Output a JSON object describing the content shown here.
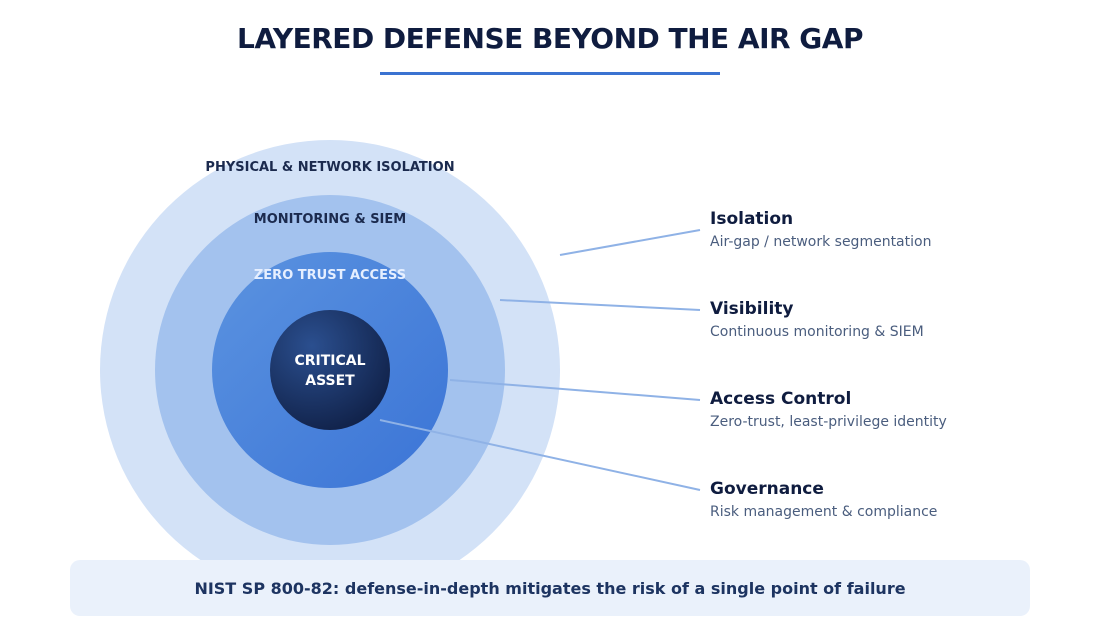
{
  "title": "LAYERED DEFENSE BEYOND THE AIR GAP",
  "rings": {
    "outer_label": "PHYSICAL & NETWORK ISOLATION",
    "second_label": "MONITORING & SIEM",
    "third_label": "ZERO TRUST ACCESS",
    "core_line1": "CRITICAL",
    "core_line2": "ASSET"
  },
  "legend": [
    {
      "title": "Isolation",
      "desc": "Air-gap / network segmentation"
    },
    {
      "title": "Visibility",
      "desc": "Continuous monitoring & SIEM"
    },
    {
      "title": "Access Control",
      "desc": "Zero-trust, least-privilege identity"
    },
    {
      "title": "Governance",
      "desc": "Risk management & compliance"
    }
  ],
  "footer": {
    "text": "NIST SP 800-82: defense-in-depth mitigates the risk of a single point of failure"
  },
  "colors": {
    "title": "#0f1c3f",
    "accent": "#3b73d1",
    "ring_outer": "#d3e2f7",
    "ring_second": "#a3c2ee",
    "ring_third": "#4f88dd",
    "core": "#1b3566",
    "leader_line": "#8fb2e6",
    "footer_bg": "#eaf1fb"
  }
}
